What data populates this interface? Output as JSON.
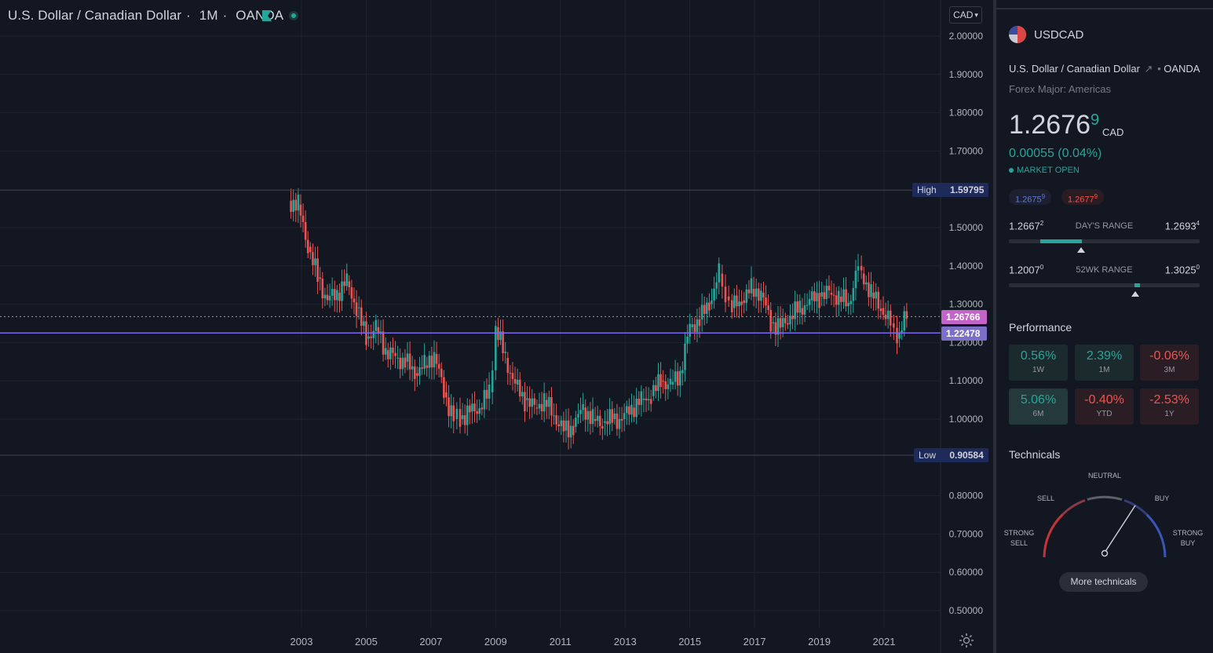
{
  "chart": {
    "symbol_title": "U.S. Dollar / Canadian Dollar",
    "interval": "1M",
    "exchange": "OANDA",
    "currency_select": "CAD",
    "price_axis_labels": [
      "2.00000",
      "1.90000",
      "1.80000",
      "1.70000",
      "1.50000",
      "1.40000",
      "1.30000",
      "1.20000",
      "1.10000",
      "1.00000",
      "0.80000",
      "0.70000",
      "0.60000",
      "0.50000"
    ],
    "time_axis_labels": [
      "2003",
      "2005",
      "2007",
      "2009",
      "2011",
      "2013",
      "2015",
      "2017",
      "2019",
      "2021"
    ],
    "high_label": "High",
    "high_value": "1.59795",
    "low_label": "Low",
    "low_value": "0.90584",
    "last_price_tag": "1.26766",
    "line_price_tag": "1.22478",
    "colors": {
      "up": "#26a69a",
      "down": "#ef5350",
      "last_price": "#c264c8",
      "line": "#7b68ee",
      "tag_line": "#6a5acd"
    }
  },
  "chart_data": {
    "type": "candlestick",
    "title": "U.S. Dollar / Canadian Dollar · 1M · OANDA",
    "ylim": [
      0.5,
      2.0
    ],
    "high": 1.59795,
    "low": 0.90584,
    "last_price": 1.26766,
    "horizontal_line": 1.22478,
    "x": [
      2002.6,
      2002.9,
      2003.2,
      2003.5,
      2003.8,
      2004.1,
      2004.4,
      2004.7,
      2005.0,
      2005.3,
      2005.6,
      2005.9,
      2006.2,
      2006.5,
      2006.8,
      2007.1,
      2007.4,
      2007.7,
      2007.9,
      2008.2,
      2008.5,
      2008.8,
      2009.0,
      2009.3,
      2009.6,
      2009.9,
      2010.2,
      2010.5,
      2010.8,
      2011.1,
      2011.4,
      2011.7,
      2012.0,
      2012.3,
      2012.6,
      2012.9,
      2013.2,
      2013.5,
      2013.8,
      2014.1,
      2014.4,
      2014.7,
      2015.0,
      2015.3,
      2015.6,
      2015.9,
      2016.1,
      2016.3,
      2016.6,
      2016.9,
      2017.2,
      2017.5,
      2017.8,
      2018.1,
      2018.4,
      2018.7,
      2019.0,
      2019.3,
      2019.6,
      2019.9,
      2020.2,
      2020.3,
      2020.6,
      2020.9,
      2021.2,
      2021.4,
      2021.7
    ],
    "close": [
      1.57,
      1.56,
      1.45,
      1.37,
      1.31,
      1.33,
      1.36,
      1.29,
      1.21,
      1.24,
      1.18,
      1.16,
      1.15,
      1.12,
      1.14,
      1.17,
      1.07,
      1.0,
      1.0,
      1.02,
      1.03,
      1.07,
      1.24,
      1.16,
      1.09,
      1.05,
      1.03,
      1.05,
      1.01,
      0.97,
      0.98,
      1.03,
      1.0,
      0.99,
      1.0,
      1.0,
      1.03,
      1.05,
      1.06,
      1.1,
      1.09,
      1.12,
      1.24,
      1.26,
      1.3,
      1.38,
      1.32,
      1.29,
      1.31,
      1.34,
      1.33,
      1.25,
      1.24,
      1.27,
      1.29,
      1.31,
      1.32,
      1.33,
      1.32,
      1.3,
      1.4,
      1.38,
      1.33,
      1.29,
      1.25,
      1.21,
      1.27
    ]
  },
  "panel": {
    "symbol": "USDCAD",
    "description": "U.S. Dollar / Canadian Dollar",
    "exchange": "OANDA",
    "category": "Forex Major: Americas",
    "price_main": "1.2676",
    "price_last_digit": "9",
    "price_currency": "CAD",
    "change": "0.00055 (0.04%)",
    "market_status": "MARKET OPEN",
    "bid": "1.2675",
    "bid_sup": "9",
    "ask": "1.2677",
    "ask_sup": "9",
    "days_range": {
      "label": "DAY'S RANGE",
      "low": "1.2667",
      "low_sup": "2",
      "high": "1.2693",
      "high_sup": "4"
    },
    "wk52_range": {
      "label": "52WK RANGE",
      "low": "1.2007",
      "low_sup": "0",
      "high": "1.3025",
      "high_sup": "0"
    },
    "performance_title": "Performance",
    "performance": [
      {
        "value": "0.56%",
        "label": "1W",
        "dir": "up"
      },
      {
        "value": "2.39%",
        "label": "1M",
        "dir": "up"
      },
      {
        "value": "-0.06%",
        "label": "3M",
        "dir": "down"
      },
      {
        "value": "5.06%",
        "label": "6M",
        "dir": "up"
      },
      {
        "value": "-0.40%",
        "label": "YTD",
        "dir": "down"
      },
      {
        "value": "-2.53%",
        "label": "1Y",
        "dir": "down"
      }
    ],
    "technicals_title": "Technicals",
    "gauge": {
      "neutral": "NEUTRAL",
      "sell": "SELL",
      "buy": "BUY",
      "strong_sell_1": "STRONG",
      "strong_sell_2": "SELL",
      "strong_buy_1": "STRONG",
      "strong_buy_2": "BUY"
    },
    "more_button": "More technicals"
  }
}
